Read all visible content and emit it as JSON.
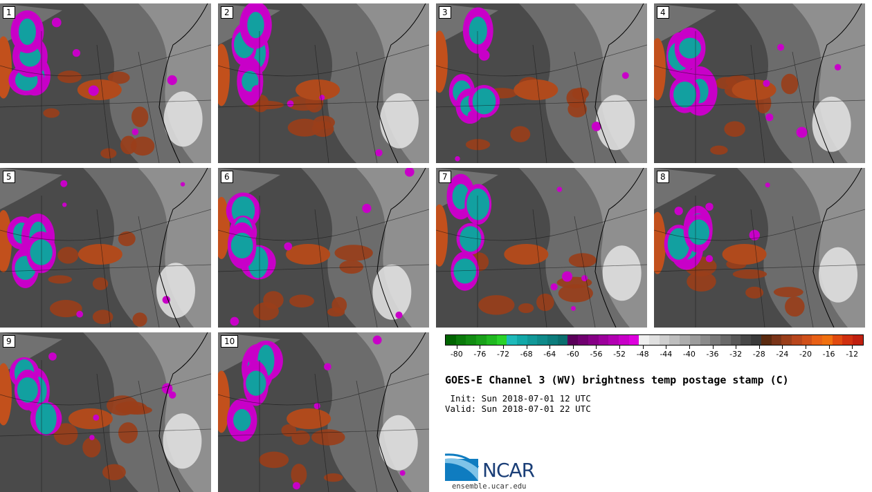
{
  "panels": [
    {
      "label": "1"
    },
    {
      "label": "2"
    },
    {
      "label": "3"
    },
    {
      "label": "4"
    },
    {
      "label": "5"
    },
    {
      "label": "6"
    },
    {
      "label": "7"
    },
    {
      "label": "8"
    },
    {
      "label": "9"
    },
    {
      "label": "10"
    }
  ],
  "colorbar": {
    "colors": [
      "#006400",
      "#0a7a0a",
      "#128c12",
      "#19a019",
      "#20b820",
      "#2ad22a",
      "#1ebaba",
      "#12a8a8",
      "#119898",
      "#0f8a8a",
      "#0c7c7c",
      "#0a6e6e",
      "#5a005a",
      "#700070",
      "#860086",
      "#9c009c",
      "#b200b2",
      "#c800c8",
      "#de00de",
      "#f0f0f0",
      "#e0e0e0",
      "#cfcfcf",
      "#bebebe",
      "#adadad",
      "#9c9c9c",
      "#8b8b8b",
      "#7a7a7a",
      "#696969",
      "#585858",
      "#474747",
      "#3a3a3a",
      "#5a2a10",
      "#7a3418",
      "#9a3e1a",
      "#b8461c",
      "#d0501a",
      "#e86016",
      "#f07010",
      "#e04a10",
      "#d03010",
      "#c02010"
    ],
    "ticks": [
      "-80",
      "-76",
      "-72",
      "-68",
      "-64",
      "-60",
      "-56",
      "-52",
      "-48",
      "-44",
      "-40",
      "-36",
      "-32",
      "-28",
      "-24",
      "-20",
      "-16",
      "-12"
    ]
  },
  "title": "GOES-E Channel 3 (WV) brightness temp postage stamp (C)",
  "init": " Init: Sun 2018-07-01 12 UTC",
  "valid": "Valid: Sun 2018-07-01 22 UTC",
  "logo": {
    "text": "NCAR",
    "site": "ensemble.ucar.edu"
  }
}
